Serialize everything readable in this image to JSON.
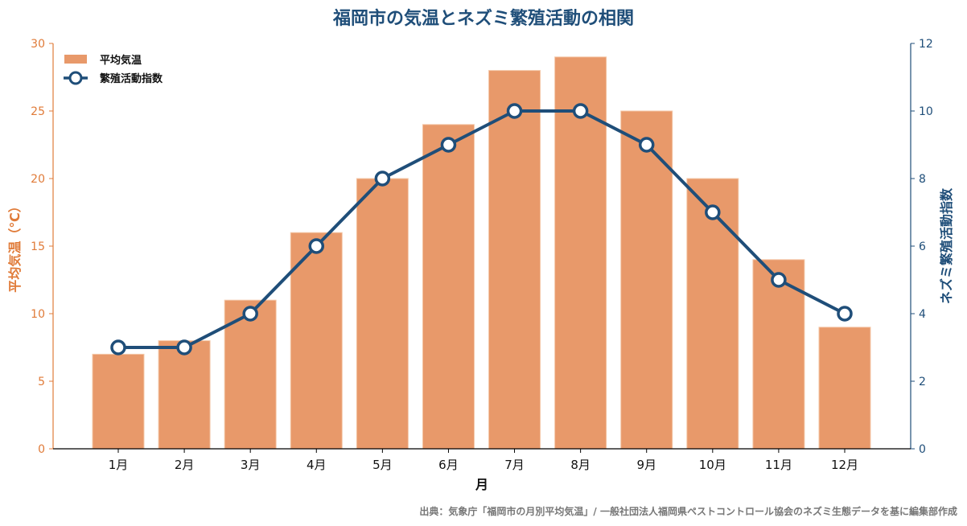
{
  "chart_data": {
    "type": "bar+line",
    "title": "福岡市の気温とネズミ繁殖活動の相関",
    "xlabel": "月",
    "ylabel_left": "平均気温（℃）",
    "ylabel_right": "ネズミ繁殖活動指数",
    "categories": [
      "1月",
      "2月",
      "3月",
      "4月",
      "5月",
      "6月",
      "7月",
      "8月",
      "9月",
      "10月",
      "11月",
      "12月"
    ],
    "series": [
      {
        "name": "平均気温",
        "type": "bar",
        "axis": "left",
        "color": "#e8996a",
        "values": [
          7,
          8,
          11,
          16,
          20,
          24,
          28,
          29,
          25,
          20,
          14,
          9
        ]
      },
      {
        "name": "繁殖活動指数",
        "type": "line",
        "axis": "right",
        "color": "#1f4e79",
        "values": [
          3,
          3,
          4,
          6,
          8,
          9,
          10,
          10,
          9,
          7,
          5,
          4
        ]
      }
    ],
    "ylim_left": [
      0,
      30
    ],
    "yticks_left": [
      0,
      5,
      10,
      15,
      20,
      25,
      30
    ],
    "ylim_right": [
      0,
      12
    ],
    "yticks_right": [
      0,
      2,
      4,
      6,
      8,
      10,
      12
    ],
    "legend_position": "top-left",
    "grid": false,
    "source": "出典：気象庁「福岡市の月別平均気温」/ 一般社団法人福岡県ペストコントロール協会のネズミ生態データを基に編集部作成",
    "colors": {
      "left_axis": "#e07b39",
      "right_axis": "#1f4e79",
      "title": "#1f4e79"
    }
  }
}
